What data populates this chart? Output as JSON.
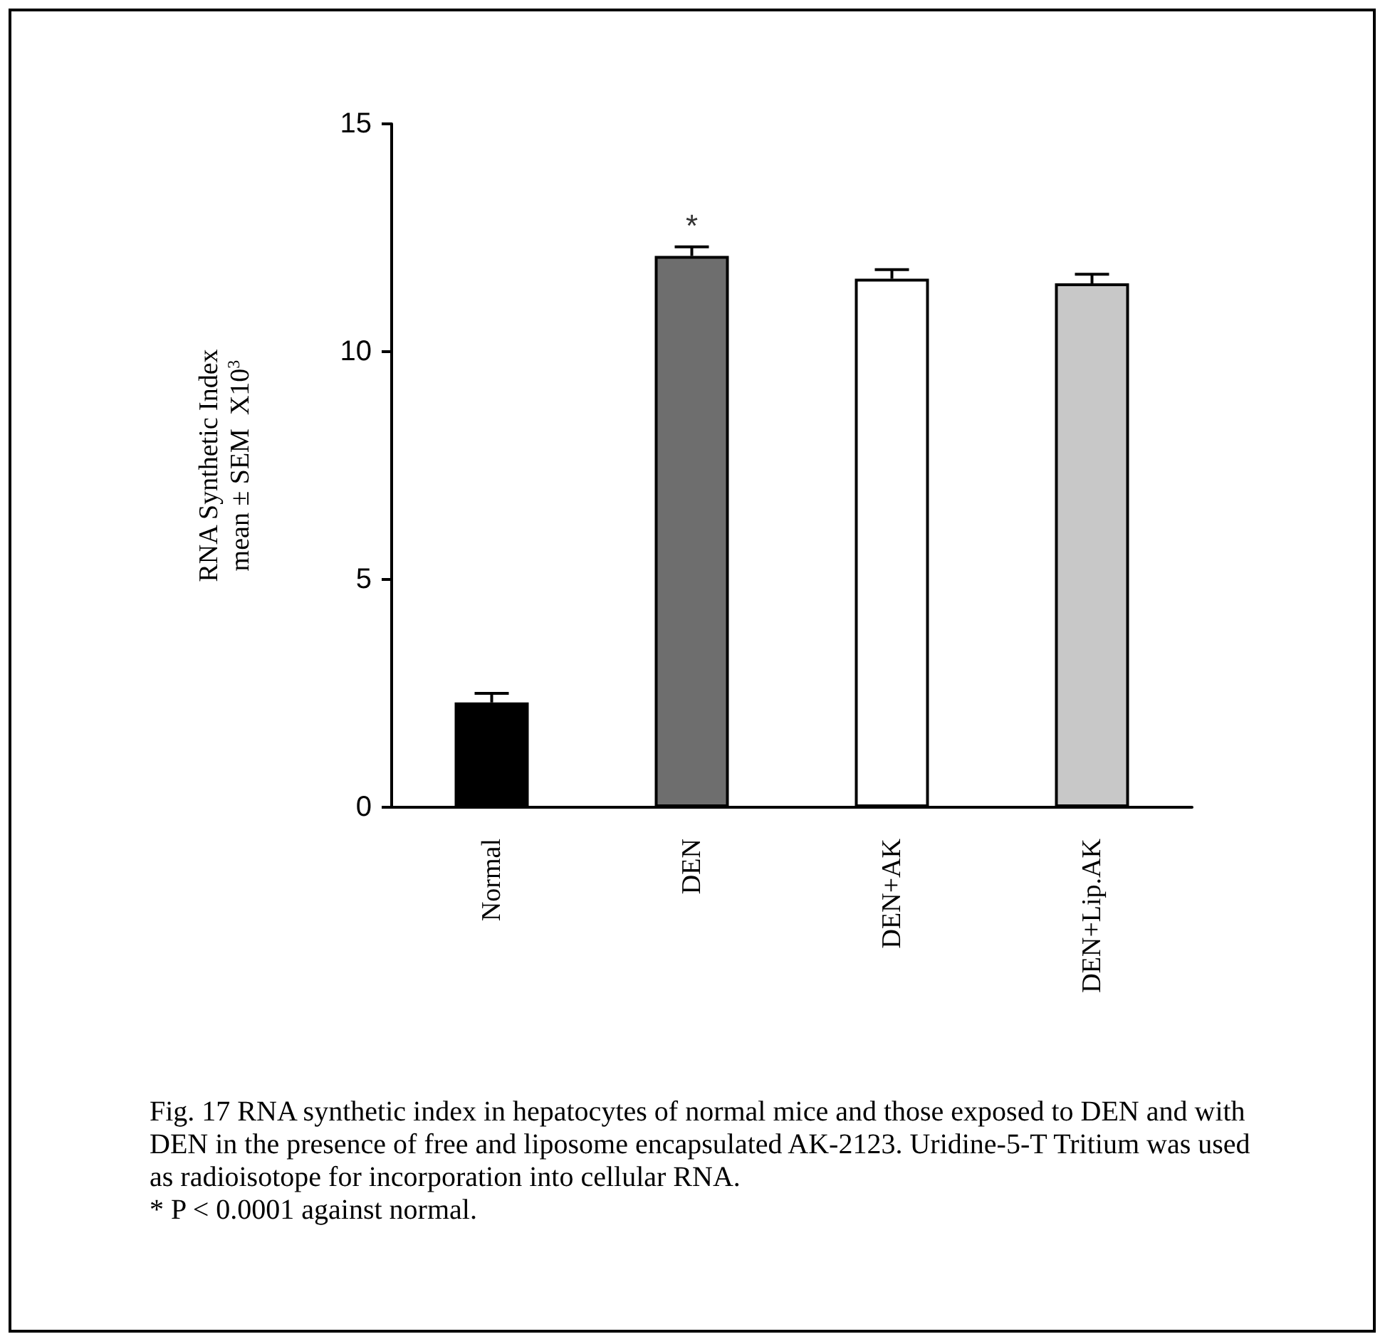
{
  "chart_data": {
    "type": "bar",
    "ylabel": "RNA Synthetic Index\nmean ± SEM  X10$^{3}$",
    "categories": [
      "Normal",
      "DEN",
      "DEN+AK",
      "DEN+Lip.AK"
    ],
    "values": [
      2.3,
      12.1,
      11.6,
      11.5
    ],
    "colors": [
      "#000000",
      "#6e6e6e",
      "#ffffff",
      "#c8c8c8"
    ],
    "errors": [
      [
        2.3,
        2.5
      ],
      [
        12.1,
        12.3
      ],
      [
        11.6,
        11.8
      ],
      [
        11.5,
        11.7
      ]
    ],
    "ylim": [
      0,
      15
    ],
    "yticks": [
      0,
      5,
      10,
      15
    ],
    "grid": false,
    "annotations": [
      {
        "text": "*",
        "x": "DEN",
        "y": 12.3
      },
      "Fig. 17 RNA synthetic index in hepatocytes of normal mice and those exposed to DEN and with DEN in the presence of free and liposome encapsulated AK-2123. Uridine-5-T Tritium was used as radioisotope for incorporation into cellular RNA.",
      "* P < 0.0001 against normal."
    ]
  }
}
